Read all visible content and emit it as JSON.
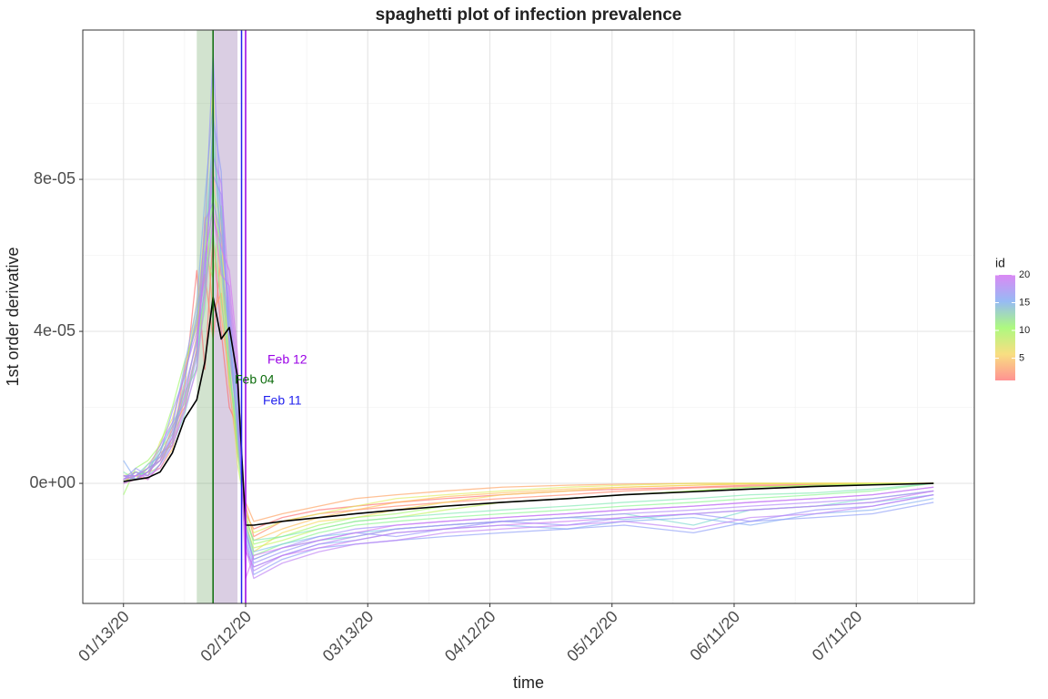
{
  "chart_data": {
    "type": "line",
    "title": "spaghetti plot of infection prevalence",
    "x_label": "time",
    "y_label": "1st order derivative",
    "x": [
      "2020-01-13",
      "2020-01-16",
      "2020-01-19",
      "2020-01-22",
      "2020-01-25",
      "2020-01-28",
      "2020-01-31",
      "2020-02-02",
      "2020-02-04",
      "2020-02-06",
      "2020-02-08",
      "2020-02-10",
      "2020-02-12",
      "2020-02-14",
      "2020-02-21",
      "2020-03-01",
      "2020-03-10",
      "2020-03-20",
      "2020-04-01",
      "2020-04-15",
      "2020-05-01",
      "2020-05-15",
      "2020-06-01",
      "2020-06-15",
      "2020-07-01",
      "2020-07-15",
      "2020-07-30"
    ],
    "xlim": [
      "2020-01-03",
      "2020-08-09"
    ],
    "xticks": [
      {
        "value": "2020-01-13",
        "label": "01/13/20"
      },
      {
        "value": "2020-02-12",
        "label": "02/12/20"
      },
      {
        "value": "2020-03-13",
        "label": "03/13/20"
      },
      {
        "value": "2020-04-12",
        "label": "04/12/20"
      },
      {
        "value": "2020-05-12",
        "label": "05/12/20"
      },
      {
        "value": "2020-06-11",
        "label": "06/11/20"
      },
      {
        "value": "2020-07-11",
        "label": "07/11/20"
      }
    ],
    "xminor": [
      "2020-01-28",
      "2020-02-27",
      "2020-03-28",
      "2020-04-27",
      "2020-05-27",
      "2020-06-26",
      "2020-07-26"
    ],
    "ylim": [
      -3.16e-05,
      0.0001193
    ],
    "yticks": [
      {
        "value": 0,
        "label": "0e+00"
      },
      {
        "value": 4e-05,
        "label": "4e-05"
      },
      {
        "value": 8e-05,
        "label": "8e-05"
      }
    ],
    "yminor": [
      -2e-05,
      2e-05,
      6e-05,
      0.0001
    ],
    "grid": true,
    "bands": [
      {
        "start": "2020-01-31",
        "end": "2020-02-04",
        "color": "#4a8f3f"
      },
      {
        "start": "2020-02-04",
        "end": "2020-02-10",
        "color": "#6a3d8f"
      }
    ],
    "vlines": [
      {
        "x": "2020-02-04",
        "color": "#0b6b0b",
        "label": "Feb 04"
      },
      {
        "x": "2020-02-11",
        "color": "#2222ee",
        "label": "Feb 11"
      },
      {
        "x": "2020-02-12",
        "color": "#9a00e6",
        "label": "Feb 12"
      }
    ],
    "series": [
      {
        "color": "#ff6b6b",
        "values": [
          1e-06,
          2e-06,
          1e-06,
          5e-06,
          1.2e-05,
          2.5e-05,
          5.6e-05,
          3e-05,
          6.5e-05,
          4e-05,
          2e-05,
          1.5e-05,
          -8e-06,
          -1.2e-05,
          -9e-06,
          -7e-06,
          -6e-06,
          -5e-06,
          -4e-06,
          -3e-06,
          -2e-06,
          -1.5e-06,
          -1e-06,
          -5e-07,
          -3e-07,
          -1e-07,
          0
        ]
      },
      {
        "color": "#ff8266",
        "values": [
          0,
          3e-06,
          2e-06,
          8e-06,
          1e-05,
          3e-05,
          4.2e-05,
          5.5e-05,
          3.8e-05,
          6e-05,
          3e-05,
          1e-05,
          -6e-06,
          -1.4e-05,
          -1e-05,
          -8e-06,
          -7e-06,
          -6e-06,
          -5e-06,
          -4e-06,
          -3e-06,
          -2e-06,
          -1.2e-06,
          -8e-07,
          -5e-07,
          -2e-07,
          0
        ]
      },
      {
        "color": "#ff9f5e",
        "values": [
          2e-06,
          1e-06,
          4e-06,
          6e-06,
          1.5e-05,
          2e-05,
          3.5e-05,
          7e-05,
          4.5e-05,
          5e-05,
          2.5e-05,
          8e-06,
          -5e-06,
          -1e-05,
          -8e-06,
          -6e-06,
          -4e-06,
          -3e-06,
          -2e-06,
          -1e-06,
          -5e-07,
          -2e-07,
          0,
          0,
          0,
          0,
          0
        ]
      },
      {
        "color": "#ffbf5a",
        "values": [
          1e-06,
          2e-06,
          3e-06,
          4e-06,
          9e-06,
          2.2e-05,
          3.9e-05,
          6.2e-05,
          8.4e-05,
          4.4e-05,
          2.8e-05,
          1.2e-05,
          -9e-06,
          -1.5e-05,
          -1.2e-05,
          -9e-06,
          -7e-06,
          -5e-06,
          -3.5e-06,
          -2.5e-06,
          -1.5e-06,
          -1e-06,
          -5e-07,
          -2e-07,
          0,
          0,
          0
        ]
      },
      {
        "color": "#f5d95a",
        "values": [
          0,
          1e-06,
          3e-06,
          7e-06,
          1.4e-05,
          2.6e-05,
          4.8e-05,
          5.9e-05,
          9e-05,
          6.4e-05,
          3.5e-05,
          1.6e-05,
          -1e-05,
          -1.8e-05,
          -1.3e-05,
          -1e-05,
          -9e-06,
          -7e-06,
          -5e-06,
          -3e-06,
          -2e-06,
          -1e-06,
          -5e-07,
          0,
          0,
          0,
          0
        ]
      },
      {
        "color": "#e0ec5c",
        "values": [
          2e-06,
          3e-06,
          2e-06,
          1.1e-05,
          1.7e-05,
          2.9e-05,
          4.4e-05,
          6.8e-05,
          0.000105,
          5.2e-05,
          3.3e-05,
          5e-06,
          -7e-06,
          -1.3e-05,
          -1e-05,
          -8e-06,
          -6e-06,
          -4e-06,
          -3e-06,
          -2e-06,
          -1e-06,
          -5e-07,
          0,
          0,
          0,
          0,
          0
        ]
      },
      {
        "color": "#c3f45e",
        "values": [
          1e-06,
          1e-06,
          5e-06,
          9e-06,
          1.3e-05,
          1.9e-05,
          3.6e-05,
          5e-05,
          7.7e-05,
          6.9e-05,
          2.6e-05,
          1.8e-05,
          -1.1e-05,
          -1.7e-05,
          -1.5e-05,
          -1.2e-05,
          -1e-05,
          -9e-06,
          -7e-06,
          -5e-06,
          -4e-06,
          -3e-06,
          -2e-06,
          -1e-06,
          -5e-07,
          -2e-07,
          0
        ]
      },
      {
        "color": "#9ff86a",
        "values": [
          -3e-06,
          4e-06,
          6e-06,
          1e-05,
          2e-05,
          3.2e-05,
          4.1e-05,
          6.1e-05,
          5.4e-05,
          7.3e-05,
          4e-05,
          1.1e-05,
          -8e-06,
          -1.6e-05,
          -1.4e-05,
          -1.1e-05,
          -9e-06,
          -8e-06,
          -6e-06,
          -5e-06,
          -4e-06,
          -3e-06,
          -2e-06,
          -1e-06,
          -5e-07,
          -2e-07,
          0
        ]
      },
      {
        "color": "#86f48c",
        "values": [
          1e-06,
          2e-06,
          3e-06,
          6e-06,
          1.1e-05,
          2.4e-05,
          3e-05,
          5.3e-05,
          6.6e-05,
          4.8e-05,
          3.1e-05,
          9e-06,
          -1.2e-05,
          -1.9e-05,
          -1.6e-05,
          -1.3e-05,
          -1.1e-05,
          -1e-05,
          -9e-06,
          -8e-06,
          -7e-06,
          -6e-06,
          -5e-06,
          -4e-06,
          -3e-06,
          -2e-06,
          0
        ]
      },
      {
        "color": "#7ee8b0",
        "values": [
          3e-06,
          1e-06,
          4e-06,
          8e-06,
          1.6e-05,
          2.1e-05,
          3.4e-05,
          4.6e-05,
          7.9e-05,
          5.7e-05,
          2.9e-05,
          1.4e-05,
          -1e-05,
          -1.5e-05,
          -1.4e-05,
          -1.2e-05,
          -1e-05,
          -9e-06,
          -8e-06,
          -7e-06,
          -6e-06,
          -5e-06,
          -4e-06,
          -3e-06,
          -2.5e-06,
          -1.5e-06,
          0
        ]
      },
      {
        "color": "#7ad8d0",
        "values": [
          1e-06,
          3e-06,
          2e-06,
          5e-06,
          1e-05,
          1.8e-05,
          3.1e-05,
          6.3e-05,
          9.2e-05,
          6e-05,
          3.7e-05,
          1.9e-05,
          -1.3e-05,
          -2e-05,
          -1.7e-05,
          -1.5e-05,
          -1.4e-05,
          -1.2e-05,
          -1.1e-05,
          -1e-05,
          -9e-06,
          -8e-06,
          -1.1e-05,
          -7e-06,
          -6e-06,
          -4e-06,
          -2e-06
        ]
      },
      {
        "color": "#7cc4e6",
        "values": [
          2e-06,
          2e-06,
          5e-06,
          7e-06,
          1.2e-05,
          2.7e-05,
          4.5e-05,
          5.6e-05,
          8.8e-05,
          7.1e-05,
          4.2e-05,
          1.3e-05,
          -1.1e-05,
          -1.8e-05,
          -1.6e-05,
          -1.4e-05,
          -1.3e-05,
          -1.2e-05,
          -1.1e-05,
          -1e-05,
          -9e-06,
          -9.5e-06,
          -8e-06,
          -7e-06,
          -6e-06,
          -5e-06,
          -3e-06
        ]
      },
      {
        "color": "#84aef2",
        "values": [
          6e-06,
          1e-06,
          3e-06,
          9e-06,
          1.5e-05,
          3.1e-05,
          4.7e-05,
          7.5e-05,
          0.0001,
          5.9e-05,
          3.9e-05,
          2.1e-05,
          -1.4e-05,
          -2.2e-05,
          -1.9e-05,
          -1.6e-05,
          -1.5e-05,
          -1.3e-05,
          -1.2e-05,
          -1.1e-05,
          -1.2e-05,
          -1e-05,
          -9e-06,
          -1.1e-05,
          -8e-06,
          -7e-06,
          -4e-06
        ]
      },
      {
        "color": "#8c9cf8",
        "values": [
          0,
          2e-06,
          4e-06,
          6e-06,
          1.3e-05,
          2.3e-05,
          3.8e-05,
          5.1e-05,
          9.6e-05,
          8.2e-05,
          3.4e-05,
          1.7e-05,
          -1.5e-05,
          -2.4e-05,
          -2e-05,
          -1.7e-05,
          -1.6e-05,
          -1.5e-05,
          -1.4e-05,
          -1.3e-05,
          -1.2e-05,
          -1.1e-05,
          -1.3e-05,
          -1e-05,
          -9e-06,
          -8e-06,
          -5e-06
        ]
      },
      {
        "color": "#9790fa",
        "values": [
          1e-06,
          4e-06,
          2e-06,
          8e-06,
          1.9e-05,
          2.8e-05,
          4.3e-05,
          6.6e-05,
          0.000113,
          6.8e-05,
          4.6e-05,
          2.4e-05,
          -1.2e-05,
          -2.1e-05,
          -1.8e-05,
          -1.5e-05,
          -1.3e-05,
          -1.4e-05,
          -1.2e-05,
          -1e-05,
          -1.1e-05,
          -9e-06,
          -8e-06,
          -1e-05,
          -7e-06,
          -6e-06,
          -3e-06
        ]
      },
      {
        "color": "#a28af9",
        "values": [
          2e-06,
          1e-06,
          3e-06,
          7e-06,
          1.4e-05,
          2.5e-05,
          3.7e-05,
          5.8e-05,
          8.1e-05,
          7.6e-05,
          3.8e-05,
          1.5e-05,
          -1.3e-05,
          -2e-05,
          -1.7e-05,
          -1.4e-05,
          -1.2e-05,
          -1.1e-05,
          -1e-05,
          -9e-06,
          -8e-06,
          -7e-06,
          -6e-06,
          -5e-06,
          -4e-06,
          -3e-06,
          -1e-06
        ]
      },
      {
        "color": "#b084f7",
        "values": [
          1e-06,
          3e-06,
          1e-06,
          5e-06,
          1.1e-05,
          2e-05,
          3.3e-05,
          6.9e-05,
          7.4e-05,
          6.5e-05,
          4.4e-05,
          2.2e-05,
          -1.6e-05,
          -2.3e-05,
          -1.9e-05,
          -1.6e-05,
          -1.4e-05,
          -1.2e-05,
          -1.1e-05,
          -1e-05,
          -9e-06,
          -8e-06,
          -7e-06,
          -6e-06,
          -5e-06,
          -4e-06,
          -2e-06
        ]
      },
      {
        "color": "#bd7ef5",
        "values": [
          2e-06,
          2e-06,
          4e-06,
          1e-05,
          1.6e-05,
          2.9e-05,
          4e-05,
          5.4e-05,
          8.6e-05,
          7.9e-05,
          4.9e-05,
          2.6e-05,
          -1.7e-05,
          -2.5e-05,
          -2.1e-05,
          -1.8e-05,
          -1.6e-05,
          -1.5e-05,
          -1.3e-05,
          -1.2e-05,
          -1.1e-05,
          -1e-05,
          -1.2e-05,
          -9e-06,
          -8e-06,
          -6e-06,
          -3e-06
        ]
      },
      {
        "color": "#c978f3",
        "values": [
          0,
          1e-06,
          3e-06,
          6e-06,
          1.2e-05,
          2.2e-05,
          3.5e-05,
          6e-05,
          7.2e-05,
          5.5e-05,
          5.2e-05,
          3e-05,
          -1.8e-05,
          -2.2e-05,
          -1.9e-05,
          -1.7e-05,
          -1.5e-05,
          -1.3e-05,
          -1.2e-05,
          -1.1e-05,
          -1e-05,
          -9e-06,
          -8e-06,
          -7e-06,
          -6e-06,
          -5e-06,
          -2e-06
        ]
      },
      {
        "color": "#d474f2",
        "values": [
          1e-06,
          2e-06,
          2e-06,
          4e-06,
          1e-05,
          1.9e-05,
          3e-05,
          4.9e-05,
          7e-05,
          6.2e-05,
          5.6e-05,
          3.4e-05,
          -2.5e-05,
          -1.9e-05,
          -1.7e-05,
          -1.5e-05,
          -1.3e-05,
          -1.1e-05,
          -1e-05,
          -9e-06,
          -8e-06,
          -7e-06,
          -6e-06,
          -5e-06,
          -4e-06,
          -3e-06,
          -1e-06
        ]
      },
      {
        "color": "#000000",
        "values": [
          5e-07,
          1e-06,
          1.5e-06,
          3e-06,
          8e-06,
          1.7e-05,
          2.2e-05,
          3.2e-05,
          4.9e-05,
          3.8e-05,
          4.1e-05,
          2.8e-05,
          -1.1e-05,
          -1.1e-05,
          -1e-05,
          -9e-06,
          -8e-06,
          -7e-06,
          -6e-06,
          -5e-06,
          -4e-06,
          -3e-06,
          -2.2e-06,
          -1.5e-06,
          -8e-07,
          -4e-07,
          0
        ]
      }
    ],
    "colorbar": {
      "title": "id",
      "range": [
        1,
        20
      ],
      "ticks": [
        5,
        10,
        15,
        20
      ],
      "colors": [
        "#ff7f7f",
        "#f7d96b",
        "#9ff86a",
        "#84aef2",
        "#d474f2"
      ]
    }
  }
}
